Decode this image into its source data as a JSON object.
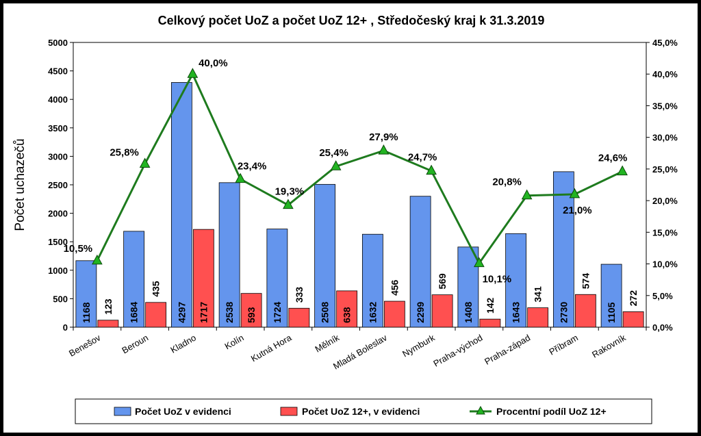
{
  "chart_data": {
    "type": "bar",
    "title": "Celkový počet UoZ a počet UoZ 12+ , Středočeský kraj k 31.3.2019",
    "ylabel": "Počet uchazečů",
    "ylim": [
      0,
      5000
    ],
    "yticks": [
      "0",
      "500",
      "1000",
      "1500",
      "2000",
      "2500",
      "3000",
      "3500",
      "4000",
      "4500",
      "5000"
    ],
    "y2lim": [
      0,
      45
    ],
    "y2ticks": [
      "0,0%",
      "5,0%",
      "10,0%",
      "15,0%",
      "20,0%",
      "25,0%",
      "30,0%",
      "35,0%",
      "40,0%",
      "45,0%"
    ],
    "grid": false,
    "legend_position": "bottom",
    "categories": [
      "Benešov",
      "Beroun",
      "Kladno",
      "Kolín",
      "Kutná Hora",
      "Mělník",
      "Mladá Boleslav",
      "Nymburk",
      "Praha-východ",
      "Praha-západ",
      "Příbram",
      "Rakovník"
    ],
    "series": [
      {
        "name": "Počet UoZ v evidenci",
        "type": "bar",
        "axis": "left",
        "color": "#6495ED",
        "values": [
          1168,
          1684,
          4297,
          2538,
          1724,
          2508,
          1632,
          2299,
          1408,
          1643,
          2730,
          1105
        ]
      },
      {
        "name": "Počet UoZ 12+, v evidenci",
        "type": "bar",
        "axis": "left",
        "color": "#FF5050",
        "values": [
          123,
          435,
          1717,
          593,
          333,
          638,
          456,
          569,
          142,
          341,
          574,
          272
        ]
      },
      {
        "name": "Procentní podíl UoZ 12+",
        "type": "line",
        "axis": "right",
        "color": "#1E7B1E",
        "marker_color": "#22B422",
        "values": [
          10.5,
          25.8,
          40.0,
          23.4,
          19.3,
          25.4,
          27.9,
          24.7,
          10.1,
          20.8,
          21.0,
          24.6
        ],
        "labels": [
          "10,5%",
          "25,8%",
          "40,0%",
          "23,4%",
          "19,3%",
          "25,4%",
          "27,9%",
          "24,7%",
          "10,1%",
          "20,8%",
          "21,0%",
          "24,6%"
        ]
      }
    ]
  }
}
